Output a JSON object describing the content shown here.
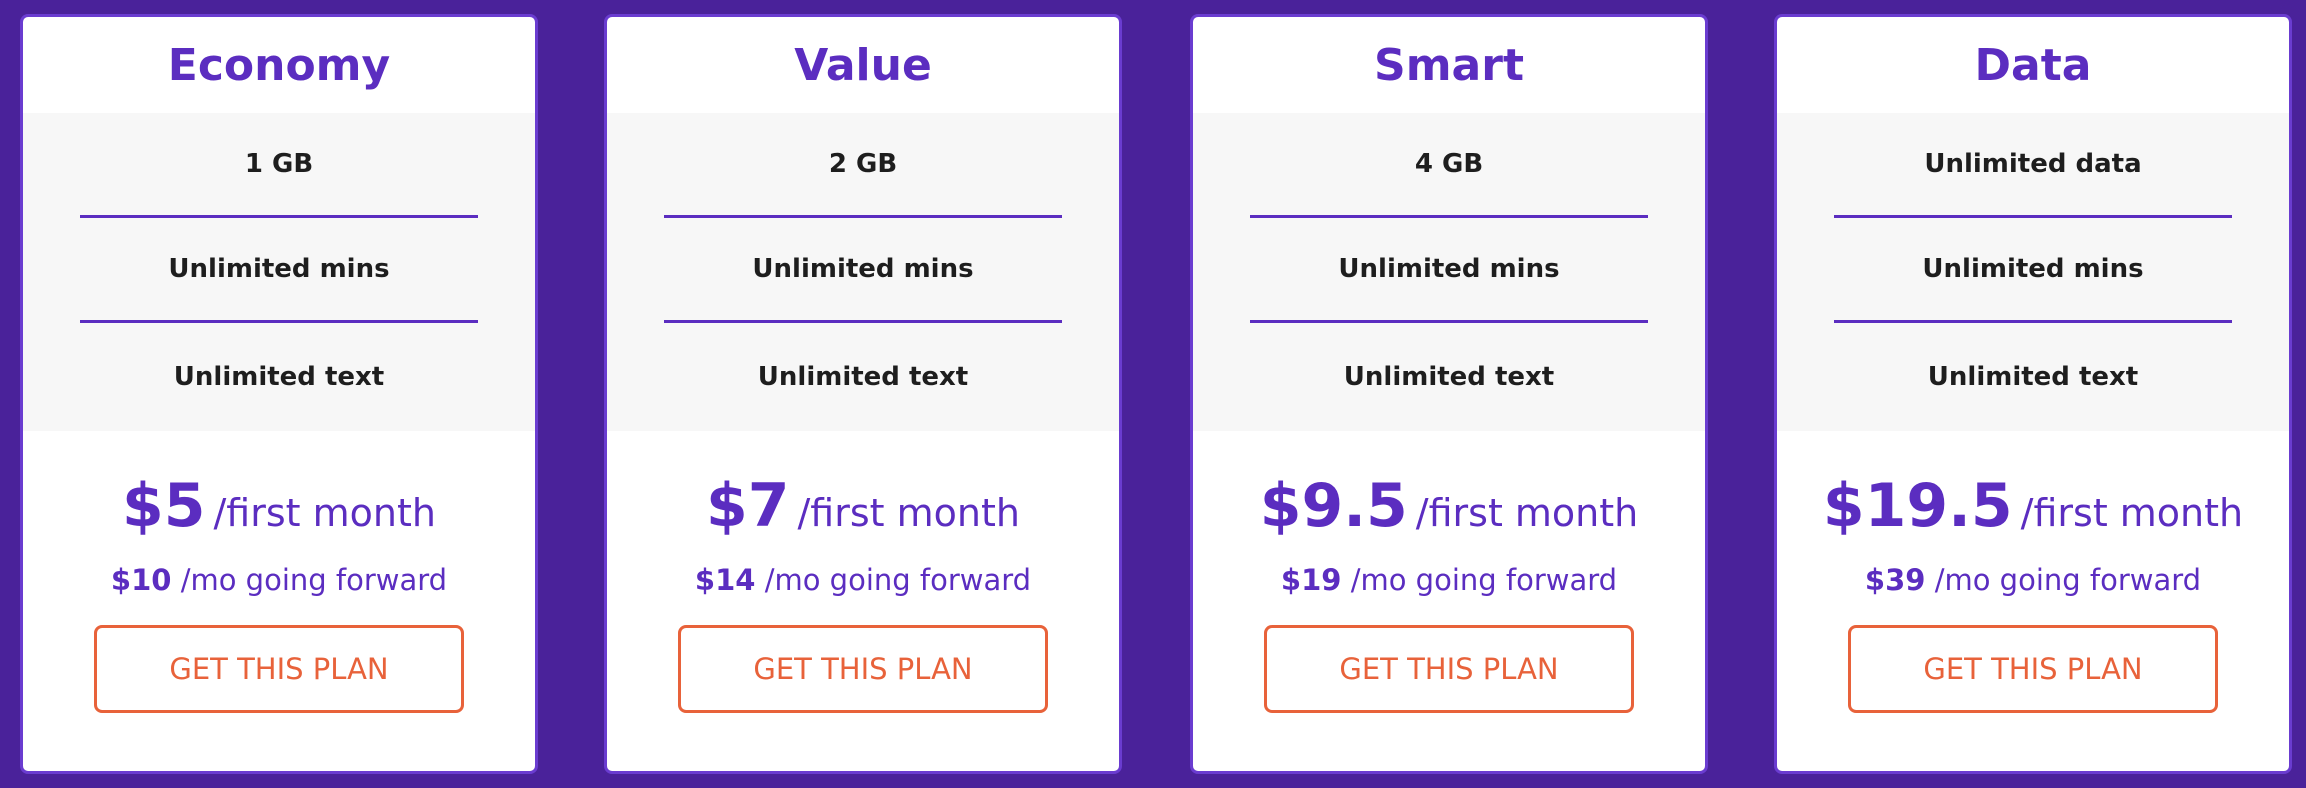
{
  "colors": {
    "background": "#4a229a",
    "accent": "#5b2dc0",
    "button": "#e8623a"
  },
  "plans": [
    {
      "name": "Economy",
      "features": [
        "1 GB",
        "Unlimited mins",
        "Unlimited text"
      ],
      "price": "$5",
      "price_unit": "/first month",
      "forward_price": "$10",
      "forward_unit": "/mo going forward",
      "cta": "GET THIS PLAN"
    },
    {
      "name": "Value",
      "features": [
        "2 GB",
        "Unlimited mins",
        "Unlimited text"
      ],
      "price": "$7",
      "price_unit": "/first month",
      "forward_price": "$14",
      "forward_unit": "/mo going forward",
      "cta": "GET THIS PLAN"
    },
    {
      "name": "Smart",
      "features": [
        "4 GB",
        "Unlimited mins",
        "Unlimited text"
      ],
      "price": "$9.5",
      "price_unit": "/first month",
      "forward_price": "$19",
      "forward_unit": "/mo going forward",
      "cta": "GET THIS PLAN"
    },
    {
      "name": "Data",
      "features": [
        "Unlimited data",
        "Unlimited mins",
        "Unlimited text"
      ],
      "price": "$19.5",
      "price_unit": "/first month",
      "forward_price": "$39",
      "forward_unit": "/mo going forward",
      "cta": "GET THIS PLAN"
    }
  ]
}
